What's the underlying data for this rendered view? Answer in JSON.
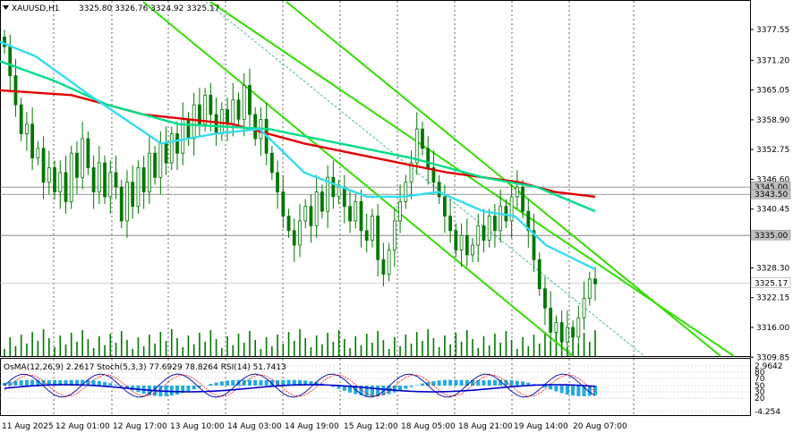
{
  "header": {
    "symbol": "XAUUSD,H1",
    "ohlc": "3325.80 3326.76 3324.92 3325.17"
  },
  "price_axis": {
    "ticks": [
      "3377.55",
      "3371.20",
      "3365.05",
      "3358.90",
      "3352.75",
      "3346.60",
      "3340.45",
      "3328.30",
      "3322.15",
      "3316.00",
      "3309.85"
    ],
    "labels": [
      {
        "text": "3345.00",
        "color": "#c0c0c0"
      },
      {
        "text": "3343.50",
        "color": "#c0c0c0"
      },
      {
        "text": "3335.00",
        "color": "#c0c0c0"
      },
      {
        "text": "3325.17",
        "color": "#ffffff"
      }
    ]
  },
  "time_axis": [
    "11 Aug 2025",
    "12 Aug 01:00",
    "12 Aug 17:00",
    "13 Aug 10:00",
    "14 Aug 03:00",
    "14 Aug 19:00",
    "15 Aug 12:00",
    "18 Aug 05:00",
    "18 Aug 21:00",
    "19 Aug 14:00",
    "20 Aug 07:00"
  ],
  "subwindow": {
    "label": "OsMA(12,26,9) 2.2617  Stoch(5,3,3) 77.6929 78.8264  RSI(14) 51.7413",
    "ticks": [
      "2.9642",
      "80",
      "70",
      "50",
      "30",
      "20",
      "-4.254"
    ]
  },
  "colors": {
    "ma_red": "#e00000",
    "ma_green": "#00dd88",
    "ma_cyan": "#33ddee",
    "channel": "#33dd00",
    "candle": "#007700",
    "osma": "#22aadd",
    "stoch_main": "#0000aa",
    "stoch_signal": "#dd0000"
  },
  "icons": {
    "menu": "triangle-down-icon"
  }
}
